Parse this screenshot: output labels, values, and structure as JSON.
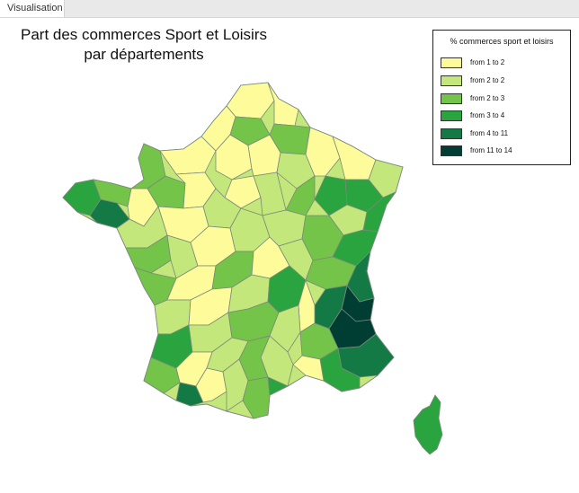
{
  "tab": {
    "label": "Visualisation"
  },
  "title": {
    "line1": "Part des commerces Sport et Loisirs",
    "line2": "par départements"
  },
  "legend": {
    "title": "% commerces sport et loisirs",
    "items": [
      {
        "label": "from 1 to 2",
        "color": "#fdfb9a"
      },
      {
        "label": "from 2 to 2",
        "color": "#c4e77b"
      },
      {
        "label": "from 2 to 3",
        "color": "#73c448"
      },
      {
        "label": "from 3 to 4",
        "color": "#2aa43e"
      },
      {
        "label": "from 4 to 11",
        "color": "#147a45"
      },
      {
        "label": "from 11 to 14",
        "color": "#003d33"
      }
    ]
  }
}
